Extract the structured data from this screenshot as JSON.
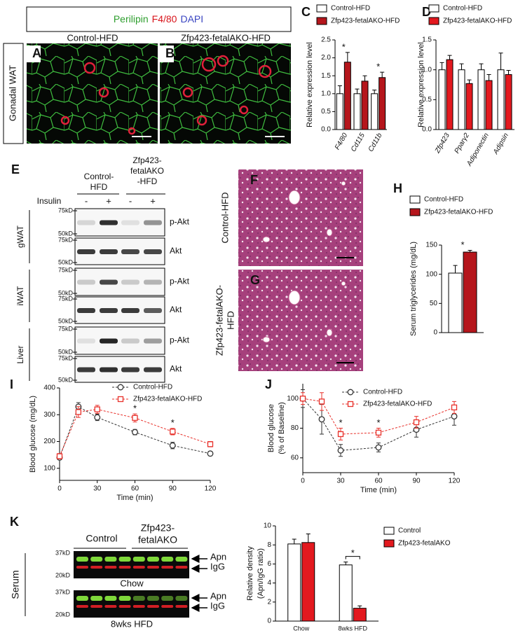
{
  "panel_labels": [
    "A",
    "B",
    "C",
    "D",
    "E",
    "F",
    "G",
    "H",
    "I",
    "J",
    "K"
  ],
  "figure_a": {
    "stains": [
      {
        "name": "Perilipin",
        "color": "#2e9e2e"
      },
      {
        "name": "F4/80",
        "color": "#d8141b"
      },
      {
        "name": "DAPI",
        "color": "#3a45c2"
      }
    ],
    "tissue": "Gonadal WAT",
    "conditions": [
      "Control-HFD",
      "Zfp423-fetalAKO-HFD"
    ]
  },
  "figure_e": {
    "groups": [
      [
        "Control-",
        "HFD"
      ],
      [
        "Zfp423-",
        "fetalAKO",
        "-HFD"
      ]
    ],
    "treatment": "Insulin",
    "lanes": [
      "-",
      "+",
      "-",
      "+"
    ],
    "tissues": [
      {
        "name": "gWAT",
        "blots": [
          {
            "target": "p-Akt",
            "markers": [
              "75kD",
              "50kD"
            ]
          },
          {
            "target": "Akt",
            "markers": [
              "75kD",
              "50kD"
            ]
          }
        ]
      },
      {
        "name": "iWAT",
        "blots": [
          {
            "target": "p-Akt",
            "markers": [
              "75kD",
              "50kD"
            ]
          },
          {
            "target": "Akt",
            "markers": [
              "75kD",
              "50kD"
            ]
          }
        ]
      },
      {
        "name": "Liver",
        "blots": [
          {
            "target": "p-Akt",
            "markers": [
              "75kD",
              "50kD"
            ]
          },
          {
            "target": "Akt",
            "markers": [
              "75kD",
              "50kD"
            ]
          }
        ]
      }
    ]
  },
  "figure_fg": {
    "conditions": [
      [
        "Control-HFD"
      ],
      [
        "Zfp423-fetalAKO-",
        "HFD"
      ]
    ]
  },
  "figure_k": {
    "groups": [
      [
        "Control"
      ],
      [
        "Zfp423-",
        "fetalAKO"
      ]
    ],
    "sample": "Serum",
    "blots": [
      {
        "condition": "Chow",
        "markers": [
          "37kD",
          "20kD"
        ],
        "bands": [
          "Apn",
          "IgG"
        ]
      },
      {
        "condition": "8wks HFD",
        "markers": [
          "37kD",
          "20kD"
        ],
        "bands": [
          "Apn",
          "IgG"
        ]
      }
    ]
  },
  "chart_data": [
    {
      "type": "bar",
      "ylabel": "Relative expression level",
      "categories": [
        "F4/80",
        "Cd115",
        "Cd11b"
      ],
      "series": [
        {
          "name": "Control-HFD",
          "color": "#ffffff",
          "values": [
            1.0,
            1.0,
            1.0
          ],
          "errors": [
            0.22,
            0.13,
            0.1
          ]
        },
        {
          "name": "Zfp423-fetalAKO-HFD",
          "color": "#b5161c",
          "values": [
            1.88,
            1.35,
            1.45
          ],
          "errors": [
            0.27,
            0.15,
            0.15
          ]
        }
      ],
      "significance": [
        "*",
        null,
        "*"
      ],
      "ylim": [
        0,
        2.5
      ],
      "yticks": [
        {
          "value": 0,
          "label": "0.0"
        },
        {
          "value": 0.5,
          "label": "0.5"
        },
        {
          "value": 1,
          "label": "1.0"
        },
        {
          "value": 1.5,
          "label": "1.5"
        },
        {
          "value": 2,
          "label": "2.0"
        },
        {
          "value": 2.5,
          "label": "2.5"
        }
      ]
    },
    {
      "type": "bar",
      "ylabel": "Relative expression level",
      "categories": [
        "Zfp423",
        "Pparγ2",
        "Adiponectin",
        "Adipsin"
      ],
      "series": [
        {
          "name": "Control-HFD",
          "color": "#ffffff",
          "values": [
            1.0,
            1.0,
            1.0,
            1.0
          ],
          "errors": [
            0.12,
            0.1,
            0.1,
            0.28
          ]
        },
        {
          "name": "Zfp423-fetalAKO-HFD",
          "color": "#e3191f",
          "values": [
            1.17,
            0.77,
            0.82,
            0.92
          ],
          "errors": [
            0.07,
            0.06,
            0.1,
            0.07
          ]
        }
      ],
      "significance": [
        null,
        null,
        null,
        null
      ],
      "ylim": [
        0,
        1.5
      ],
      "yticks": [
        {
          "value": 0,
          "label": "0.0"
        },
        {
          "value": 0.5,
          "label": "0.5"
        },
        {
          "value": 1,
          "label": "1.0"
        },
        {
          "value": 1.5,
          "label": "1.5"
        }
      ]
    },
    {
      "type": "bar",
      "ylabel": "Serum triglycerides (mg/dL)",
      "categories": [
        null
      ],
      "series": [
        {
          "name": "Control-HFD",
          "color": "#ffffff",
          "values": [
            102
          ],
          "errors": [
            13
          ]
        },
        {
          "name": "Zfp423-fetalAKO-HFD",
          "color": "#b5161c",
          "values": [
            138
          ],
          "errors": [
            3
          ]
        }
      ],
      "significance": [
        "*"
      ],
      "ylim": [
        0,
        150
      ],
      "yticks": [
        0,
        50,
        100,
        150
      ]
    },
    {
      "type": "line",
      "xlabel": "Time (min)",
      "ylabel": "Blood glucose (mg/dL)",
      "x": [
        0,
        15,
        30,
        60,
        90,
        120
      ],
      "series": [
        {
          "name": "Control-HFD",
          "color": "#333333",
          "marker": "circle",
          "linestyle": "dashed",
          "values": [
            140,
            330,
            290,
            235,
            185,
            155
          ],
          "errors": [
            8,
            15,
            12,
            10,
            12,
            8
          ]
        },
        {
          "name": "Zfp423-fetalAKO-HFD",
          "color": "#e8302a",
          "marker": "square",
          "linestyle": "dashed",
          "values": [
            145,
            310,
            320,
            288,
            237,
            190
          ],
          "errors": [
            10,
            20,
            15,
            15,
            12,
            10
          ]
        }
      ],
      "significance": [
        null,
        null,
        null,
        "*",
        "*",
        null
      ],
      "xlim": [
        0,
        120
      ],
      "xticks": [
        0,
        30,
        60,
        90,
        120
      ],
      "ylim": [
        55,
        400
      ],
      "yticks": [
        100,
        200,
        300,
        400
      ]
    },
    {
      "type": "line",
      "xlabel": "Time (min)",
      "ylabel": [
        "Blood glucose",
        "(% of Baseline)"
      ],
      "x": [
        0,
        15,
        30,
        60,
        90,
        120
      ],
      "series": [
        {
          "name": "Control-HFD",
          "color": "#333333",
          "marker": "circle",
          "linestyle": "dashed",
          "values": [
            100,
            86,
            65,
            67,
            79,
            88
          ],
          "errors": [
            6,
            10,
            4,
            3,
            5,
            6
          ]
        },
        {
          "name": "Zfp423-fetalAKO-HFD",
          "color": "#e8302a",
          "marker": "square",
          "linestyle": "dashed",
          "values": [
            100,
            98,
            76,
            77,
            84,
            94
          ],
          "errors": [
            4,
            6,
            4,
            3,
            4,
            4
          ]
        }
      ],
      "significance": [
        null,
        null,
        "*",
        "*",
        null,
        null
      ],
      "xlim": [
        0,
        120
      ],
      "xticks": [
        0,
        30,
        60,
        90,
        120
      ],
      "ylim": [
        50,
        110
      ],
      "yticks": [
        60,
        80,
        100
      ]
    },
    {
      "type": "bar",
      "ylabel": [
        "Relative density",
        "(Apn/IgG ratio)"
      ],
      "categories": [
        "Chow",
        "8wks HFD"
      ],
      "series": [
        {
          "name": "Control",
          "color": "#ffffff",
          "values": [
            8.1,
            5.9
          ],
          "errors": [
            0.5,
            0.3
          ]
        },
        {
          "name": "Zfp423-fetalAKO",
          "color": "#e3191f",
          "values": [
            8.25,
            1.35
          ],
          "errors": [
            0.9,
            0.25
          ]
        }
      ],
      "significance": [
        null,
        "*"
      ],
      "ylim": [
        0,
        10
      ],
      "yticks": [
        0,
        2,
        4,
        6,
        8,
        10
      ]
    }
  ]
}
